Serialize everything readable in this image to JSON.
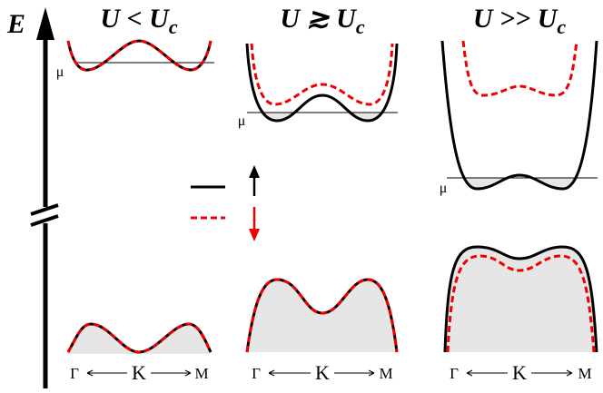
{
  "axis_label": "E",
  "panels": [
    {
      "title": {
        "main": "U < U",
        "sub": "c"
      },
      "mu": "μ",
      "k_labels": [
        "Γ",
        "K",
        "M"
      ]
    },
    {
      "title": {
        "main": "U ≳ U",
        "sub": "c"
      },
      "mu": "μ",
      "k_labels": [
        "Γ",
        "K",
        "M"
      ]
    },
    {
      "title": {
        "main": "U >> U",
        "sub": "c"
      },
      "mu": "μ",
      "k_labels": [
        "Γ",
        "K",
        "M"
      ]
    }
  ]
}
